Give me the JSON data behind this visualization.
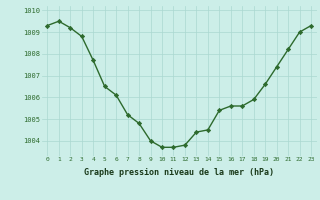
{
  "x": [
    0,
    1,
    2,
    3,
    4,
    5,
    6,
    7,
    8,
    9,
    10,
    11,
    12,
    13,
    14,
    15,
    16,
    17,
    18,
    19,
    20,
    21,
    22,
    23
  ],
  "y": [
    1009.3,
    1009.5,
    1009.2,
    1008.8,
    1007.7,
    1006.5,
    1006.1,
    1005.2,
    1004.8,
    1004.0,
    1003.7,
    1003.7,
    1003.8,
    1004.4,
    1004.5,
    1005.4,
    1005.6,
    1005.6,
    1005.9,
    1006.6,
    1007.4,
    1008.2,
    1009.0,
    1009.3
  ],
  "ylim": [
    1003.3,
    1010.2
  ],
  "yticks": [
    1004,
    1005,
    1006,
    1007,
    1008,
    1009,
    1010
  ],
  "xtick_labels": [
    "0",
    "1",
    "2",
    "3",
    "4",
    "5",
    "6",
    "7",
    "8",
    "9",
    "10",
    "11",
    "12",
    "13",
    "14",
    "15",
    "16",
    "17",
    "18",
    "19",
    "20",
    "21",
    "22",
    "23"
  ],
  "xlabel": "Graphe pression niveau de la mer (hPa)",
  "line_color": "#2d6a2d",
  "marker_color": "#2d6a2d",
  "bg_color": "#cceee8",
  "grid_color": "#aad8d0",
  "tick_label_color": "#2d6a2d",
  "xlabel_color": "#1a3a1a"
}
